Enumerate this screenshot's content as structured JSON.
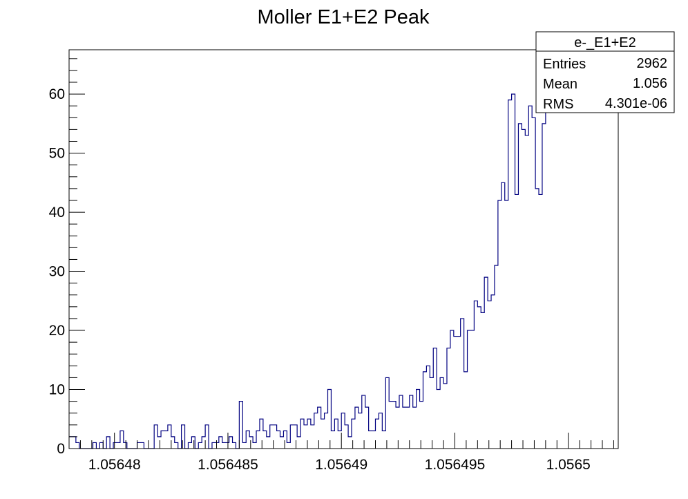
{
  "chart_data": {
    "type": "histogram",
    "title": "Moller E1+E2 Peak",
    "xlabel": "",
    "ylabel": "",
    "xlim": [
      1.056478,
      1.0565022
    ],
    "ylim": [
      0,
      67.5
    ],
    "x_ticks": [
      {
        "value": 1.05648,
        "label": "1.05648"
      },
      {
        "value": 1.056485,
        "label": "1.056485"
      },
      {
        "value": 1.05649,
        "label": "1.05649"
      },
      {
        "value": 1.056495,
        "label": "1.056495"
      },
      {
        "value": 1.0565,
        "label": "1.0565"
      }
    ],
    "y_ticks": [
      {
        "value": 0,
        "label": "0"
      },
      {
        "value": 10,
        "label": "10"
      },
      {
        "value": 20,
        "label": "20"
      },
      {
        "value": 30,
        "label": "30"
      },
      {
        "value": 40,
        "label": "40"
      },
      {
        "value": 50,
        "label": "50"
      },
      {
        "value": 60,
        "label": "60"
      }
    ],
    "bin_width": 1.5e-07,
    "counts": [
      2,
      2,
      1,
      0,
      0,
      0,
      0,
      1,
      0,
      1,
      0,
      2,
      0,
      1,
      1,
      3,
      1,
      0,
      0,
      0,
      1,
      1,
      0,
      0,
      0,
      4,
      2,
      3,
      3,
      4,
      2,
      1,
      0,
      4,
      0,
      1,
      2,
      0,
      1,
      2,
      4,
      0,
      1,
      1,
      2,
      1,
      1,
      2,
      1,
      0,
      8,
      1,
      3,
      2,
      1,
      3,
      5,
      3,
      2,
      4,
      4,
      3,
      2,
      3,
      1,
      4,
      4,
      2,
      5,
      4,
      5,
      4,
      6,
      7,
      5,
      6,
      10,
      3,
      5,
      3,
      6,
      4,
      2,
      5,
      7,
      6,
      9,
      7,
      3,
      3,
      5,
      6,
      3,
      12,
      8,
      8,
      7,
      9,
      7,
      7,
      9,
      7,
      10,
      8,
      13,
      14,
      12,
      17,
      10,
      12,
      11,
      17,
      20,
      19,
      19,
      22,
      13,
      20,
      20,
      25,
      24,
      23,
      29,
      25,
      26,
      31,
      42,
      45,
      42,
      59,
      60,
      43,
      55,
      54,
      53,
      58,
      56,
      44,
      43,
      55,
      57
    ],
    "line_color": "#000080",
    "grid": false,
    "legend": "none",
    "stats_box": {
      "title": "e-_E1+E2",
      "rows": [
        {
          "label": "Entries",
          "value": "2962"
        },
        {
          "label": "Mean",
          "value": "1.056"
        },
        {
          "label": "RMS",
          "value": "4.301e-06"
        }
      ]
    }
  }
}
